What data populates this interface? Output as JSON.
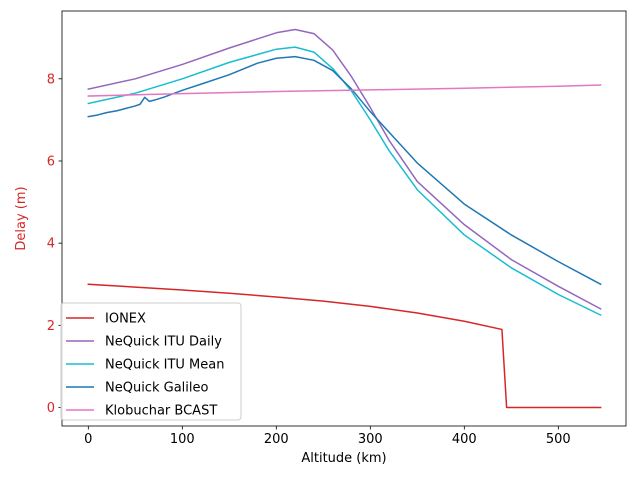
{
  "chart_data": {
    "type": "line",
    "title": "",
    "xlabel": "Altitude (km)",
    "ylabel": "Delay (m)",
    "xlim": [
      -28,
      572
    ],
    "ylim": [
      -0.45,
      9.65
    ],
    "xticks": [
      0,
      100,
      200,
      300,
      400,
      500
    ],
    "yticks": [
      0,
      2,
      4,
      6,
      8
    ],
    "grid": false,
    "legend_position": "lower-left",
    "ylabel_color": "#d62728",
    "series": [
      {
        "name": "IONEX",
        "color": "#d62728",
        "x": [
          0,
          50,
          100,
          150,
          200,
          250,
          300,
          350,
          400,
          440,
          445,
          500,
          545
        ],
        "y": [
          3.0,
          2.93,
          2.86,
          2.78,
          2.69,
          2.59,
          2.46,
          2.3,
          2.1,
          1.9,
          0.0,
          0.0,
          0.0
        ]
      },
      {
        "name": "NeQuick ITU Daily",
        "color": "#9467bd",
        "x": [
          0,
          50,
          100,
          150,
          200,
          220,
          240,
          260,
          280,
          300,
          320,
          350,
          400,
          450,
          500,
          545
        ],
        "y": [
          7.75,
          8.0,
          8.35,
          8.75,
          9.12,
          9.2,
          9.1,
          8.7,
          8.05,
          7.3,
          6.5,
          5.5,
          4.45,
          3.6,
          2.95,
          2.4
        ]
      },
      {
        "name": "NeQuick ITU Mean",
        "color": "#17becf",
        "x": [
          0,
          50,
          100,
          150,
          200,
          220,
          240,
          260,
          280,
          300,
          320,
          350,
          400,
          450,
          500,
          545
        ],
        "y": [
          7.4,
          7.65,
          8.0,
          8.4,
          8.72,
          8.77,
          8.65,
          8.25,
          7.7,
          7.0,
          6.25,
          5.3,
          4.2,
          3.4,
          2.75,
          2.25
        ]
      },
      {
        "name": "NeQuick Galileo",
        "color": "#1f77b4",
        "x": [
          0,
          10,
          20,
          30,
          40,
          50,
          55,
          60,
          65,
          70,
          80,
          100,
          120,
          150,
          180,
          200,
          220,
          240,
          260,
          280,
          300,
          320,
          350,
          400,
          450,
          500,
          545
        ],
        "y": [
          7.08,
          7.12,
          7.18,
          7.22,
          7.28,
          7.34,
          7.38,
          7.55,
          7.45,
          7.48,
          7.55,
          7.72,
          7.87,
          8.1,
          8.38,
          8.5,
          8.54,
          8.45,
          8.2,
          7.75,
          7.2,
          6.7,
          5.95,
          4.95,
          4.2,
          3.55,
          3.0
        ]
      },
      {
        "name": "Klobuchar BCAST",
        "color": "#e377c2",
        "x": [
          0,
          100,
          200,
          300,
          400,
          500,
          545
        ],
        "y": [
          7.58,
          7.64,
          7.69,
          7.73,
          7.77,
          7.82,
          7.85
        ]
      }
    ]
  }
}
